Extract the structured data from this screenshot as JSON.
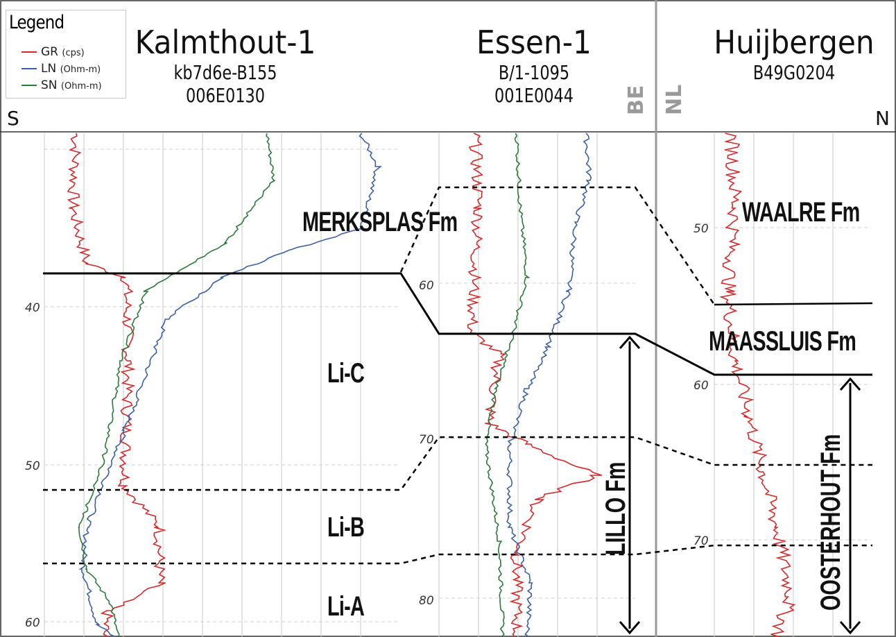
{
  "legend": {
    "title": "Legend",
    "items": [
      {
        "name": "GR",
        "unit": "(cps)",
        "color": "#d62728"
      },
      {
        "name": "LN",
        "unit": "(Ohm-m)",
        "color": "#3a5fa8"
      },
      {
        "name": "SN",
        "unit": "(Ohm-m)",
        "color": "#2a7a3a"
      }
    ]
  },
  "directions": {
    "south": "S",
    "north": "N"
  },
  "countries": {
    "left": "BE",
    "right": "NL"
  },
  "wells": [
    {
      "name": "Kalmthout-1",
      "code1": "kb7d6e-B155",
      "code2": "006E0130",
      "depth_labels": [
        "40",
        "50",
        "60"
      ]
    },
    {
      "name": "Essen-1",
      "code1": "B/1-1095",
      "code2": "001E0044",
      "depth_labels": [
        "60",
        "70",
        "80"
      ]
    },
    {
      "name": "Huijbergen",
      "code1": "B49G0204",
      "depth_labels": [
        "50",
        "60",
        "70"
      ]
    }
  ],
  "formations": {
    "merksplas": "MERKSPLAS Fm",
    "waalre": "WAALRE Fm",
    "maassluis": "MAASSLUIS Fm",
    "li_c": "Li-C",
    "li_b": "Li-B",
    "li_a": "Li-A",
    "lillo": "LILLO Fm",
    "oosterhout": "OOSTERHOUT Fm"
  },
  "colors": {
    "gr": "#d62728",
    "ln": "#3a5fa8",
    "sn": "#2a7a3a",
    "grid": "#c8c8c8",
    "border": "#9a9a9a"
  }
}
